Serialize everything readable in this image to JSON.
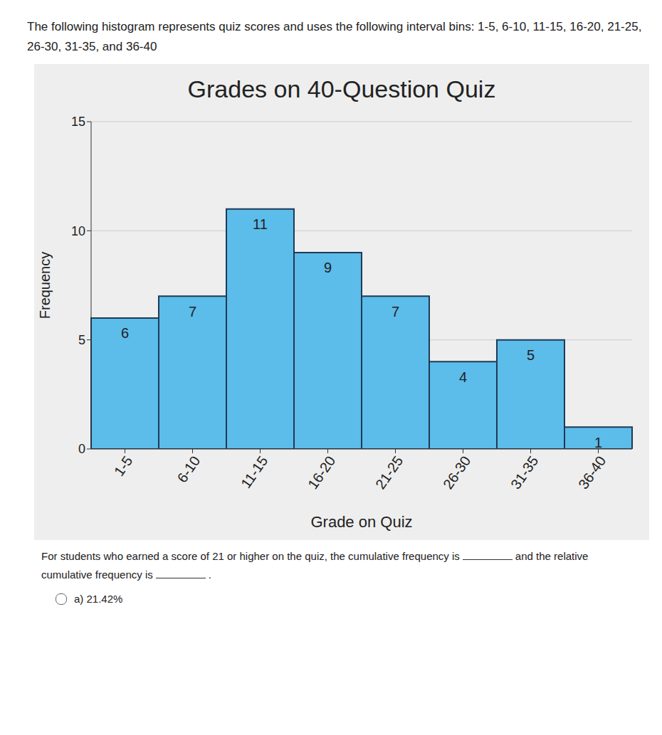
{
  "question": {
    "intro": "The following histogram represents quiz scores and uses the following interval bins: 1-5, 6-10, 11-15, 16-20, 21-25, 26-30, 31-35, and 36-40",
    "prompt_parts": [
      "For students who earned a score of 21 or higher on the quiz, the cumulative frequency is",
      "and the relative cumulative frequency is",
      "."
    ],
    "option": "a) 21.42%"
  },
  "chart_data": {
    "type": "bar",
    "title": "Grades on 40-Question Quiz",
    "x_label": "Grade on Quiz",
    "y_label": "Frequency",
    "categories": [
      "1-5",
      "6-10",
      "11-15",
      "16-20",
      "21-25",
      "26-30",
      "31-35",
      "36-40"
    ],
    "values": [
      6,
      7,
      11,
      9,
      7,
      4,
      5,
      1
    ],
    "color": "#5cbcea",
    "ylim": [
      0,
      15
    ],
    "yticks": [
      0,
      5,
      10,
      15
    ],
    "grid": true,
    "data_labels": true
  }
}
